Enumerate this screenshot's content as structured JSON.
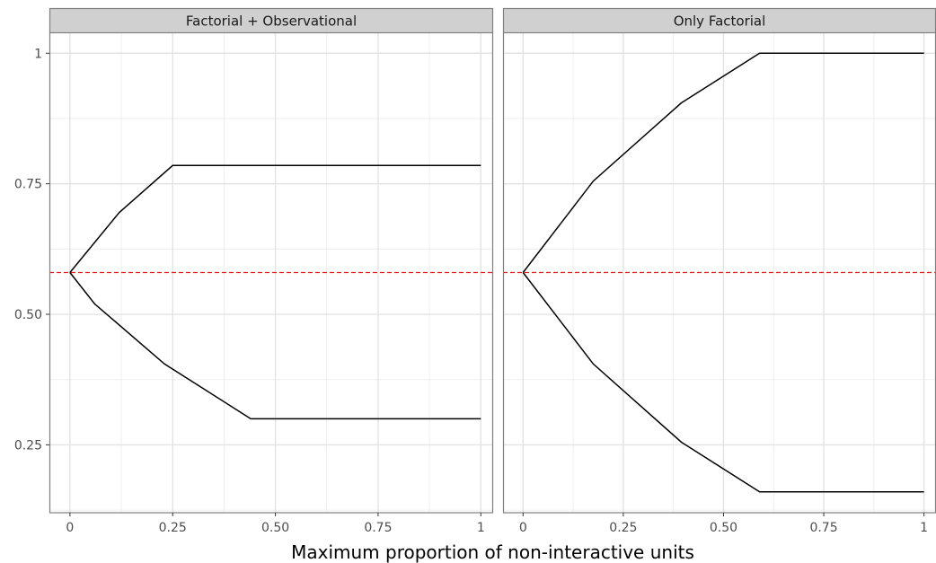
{
  "chart_data": {
    "type": "line",
    "title": "",
    "xlabel": "Maximum proportion of non-interactive units",
    "ylabel": "",
    "xlim": [
      -0.05,
      1.03
    ],
    "ylim": [
      0.12,
      1.04
    ],
    "x_ticks": [
      0,
      0.25,
      0.5,
      0.75,
      1
    ],
    "x_tick_labels": [
      "0",
      "0.25",
      "0.50",
      "0.75",
      "1"
    ],
    "y_ticks": [
      0.25,
      0.5,
      0.75,
      1
    ],
    "y_tick_labels": [
      "0.25",
      "0.50",
      "0.75",
      "1"
    ],
    "grid": true,
    "reference_line": {
      "y": 0.58,
      "style": "dashed",
      "color": "#e41a1c"
    },
    "line_color": "#000000",
    "panels": [
      {
        "name": "Factorial + Observational",
        "series": [
          {
            "x": [
              0,
              0.12,
              0.25,
              1
            ],
            "y": [
              0.58,
              0.695,
              0.785,
              0.785
            ]
          },
          {
            "x": [
              0,
              0.06,
              0.23,
              0.44,
              1
            ],
            "y": [
              0.58,
              0.52,
              0.405,
              0.3,
              0.3
            ]
          }
        ]
      },
      {
        "name": "Only Factorial",
        "series": [
          {
            "x": [
              0,
              0.175,
              0.395,
              0.59,
              1
            ],
            "y": [
              0.58,
              0.755,
              0.905,
              1.0,
              1.0
            ]
          },
          {
            "x": [
              0,
              0.175,
              0.395,
              0.59,
              1
            ],
            "y": [
              0.58,
              0.405,
              0.255,
              0.16,
              0.16
            ]
          }
        ]
      }
    ]
  }
}
